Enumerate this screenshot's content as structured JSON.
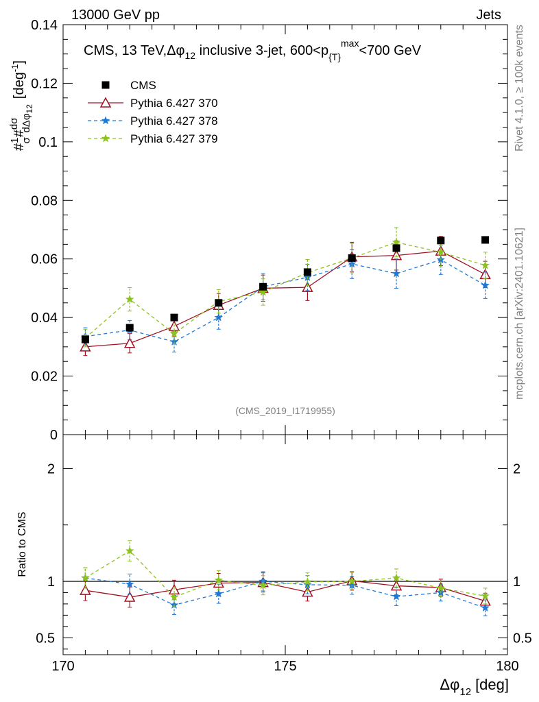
{
  "header": {
    "left": "13000 GeV pp",
    "right": "Jets"
  },
  "side_text": {
    "rivet": "Rivet 4.1.0, ≥ 100k events",
    "mcplots": "mcplots.cern.ch [arXiv:2401.10621]"
  },
  "analysis_tag": "(CMS_2019_I1719955)",
  "chart_data": {
    "type": "line",
    "title": "CMS, 13 TeV,Δφ₁₂ inclusive 3-jet, 600<p{T}max<700 GeV",
    "title_parts": {
      "prefix": "CMS, 13 TeV,",
      "dphi": "Δφ",
      "dphi_sub": "12",
      "middle": " inclusive 3-jet, 600<p",
      "pt_sub": "{T}",
      "pt_sup": "max",
      "suffix": "<700 GeV"
    },
    "xlabel": "Δφ",
    "xlabel_sub": "12",
    "xlabel_unit": "[deg]",
    "ylabel": "#¹⁄σ #dσ/dΔφ₁₂ [deg⁻¹]",
    "ylabel_parts": {
      "hash": "#",
      "one": "1",
      "sigma": "σ",
      "hash2": "#",
      "dsigma": "dσ",
      "dphi": "dΔφ",
      "sub": "12",
      "unit": "[deg",
      "unit_sup": "-1",
      "unit_close": "]"
    },
    "ratio_ylabel": "Ratio to CMS",
    "xlim": [
      170,
      180
    ],
    "ylim": [
      0,
      0.14
    ],
    "ratio_ylim": [
      0.35,
      2.3
    ],
    "x_ticks": [
      "170",
      "175",
      "180"
    ],
    "y_ticks": [
      "0",
      "0.02",
      "0.04",
      "0.06",
      "0.08",
      "0.1",
      "0.12",
      "0.14"
    ],
    "ratio_ticks": [
      "0.5",
      "1",
      "2"
    ],
    "x": [
      170.5,
      171.5,
      172.5,
      173.5,
      174.5,
      175.5,
      176.5,
      177.5,
      178.5,
      179.5
    ],
    "series": [
      {
        "name": "CMS",
        "marker": "square",
        "color": "#000000",
        "values": [
          0.0325,
          0.0365,
          0.04,
          0.045,
          0.0505,
          0.0555,
          0.0603,
          0.0637,
          0.0663,
          0.0665
        ],
        "errors": [
          0.0012,
          0.0012,
          0.0012,
          0.0012,
          0.0012,
          0.0012,
          0.0012,
          0.0012,
          0.0012,
          0.0012
        ],
        "ratio": [
          1,
          1,
          1,
          1,
          1,
          1,
          1,
          1,
          1,
          1
        ],
        "ratio_errors": [
          0,
          0,
          0,
          0,
          0,
          0,
          0,
          0,
          0,
          0
        ]
      },
      {
        "name": "Pythia 6.427 370",
        "marker": "triangle",
        "color": "#a01020",
        "dashed": false,
        "values": [
          0.03,
          0.0312,
          0.037,
          0.0442,
          0.05,
          0.0503,
          0.0607,
          0.0612,
          0.0627,
          0.0547
        ],
        "errors": [
          0.003,
          0.0033,
          0.0035,
          0.004,
          0.0045,
          0.0045,
          0.005,
          0.005,
          0.005,
          0.0045
        ],
        "ratio": [
          0.92,
          0.86,
          0.925,
          0.985,
          0.99,
          0.905,
          1.005,
          0.96,
          0.945,
          0.825
        ],
        "ratio_errors": [
          0.09,
          0.09,
          0.085,
          0.085,
          0.085,
          0.08,
          0.08,
          0.08,
          0.075,
          0.07
        ]
      },
      {
        "name": "Pythia 6.427 378",
        "marker": "star",
        "color": "#1f78d4",
        "dashed": true,
        "values": [
          0.0335,
          0.0357,
          0.0317,
          0.04,
          0.0505,
          0.0537,
          0.0583,
          0.055,
          0.0597,
          0.051
        ],
        "errors": [
          0.003,
          0.0033,
          0.0035,
          0.004,
          0.0045,
          0.0045,
          0.005,
          0.005,
          0.005,
          0.0045
        ],
        "ratio": [
          1.03,
          0.975,
          0.79,
          0.89,
          1.0,
          0.97,
          0.965,
          0.865,
          0.9,
          0.765
        ],
        "ratio_errors": [
          0.09,
          0.09,
          0.085,
          0.085,
          0.085,
          0.08,
          0.08,
          0.08,
          0.075,
          0.07
        ]
      },
      {
        "name": "Pythia 6.427 379",
        "marker": "star",
        "color": "#8cc21e",
        "dashed": true,
        "values": [
          0.033,
          0.0462,
          0.0345,
          0.0455,
          0.0487,
          0.0553,
          0.0603,
          0.0657,
          0.0623,
          0.0578
        ],
        "errors": [
          0.003,
          0.004,
          0.0035,
          0.004,
          0.0045,
          0.0045,
          0.005,
          0.005,
          0.005,
          0.0045
        ],
        "ratio": [
          1.03,
          1.27,
          0.86,
          1.01,
          0.965,
          0.995,
          1.0,
          1.03,
          0.94,
          0.87
        ],
        "ratio_errors": [
          0.09,
          0.09,
          0.085,
          0.085,
          0.085,
          0.08,
          0.08,
          0.08,
          0.075,
          0.07
        ]
      }
    ]
  }
}
